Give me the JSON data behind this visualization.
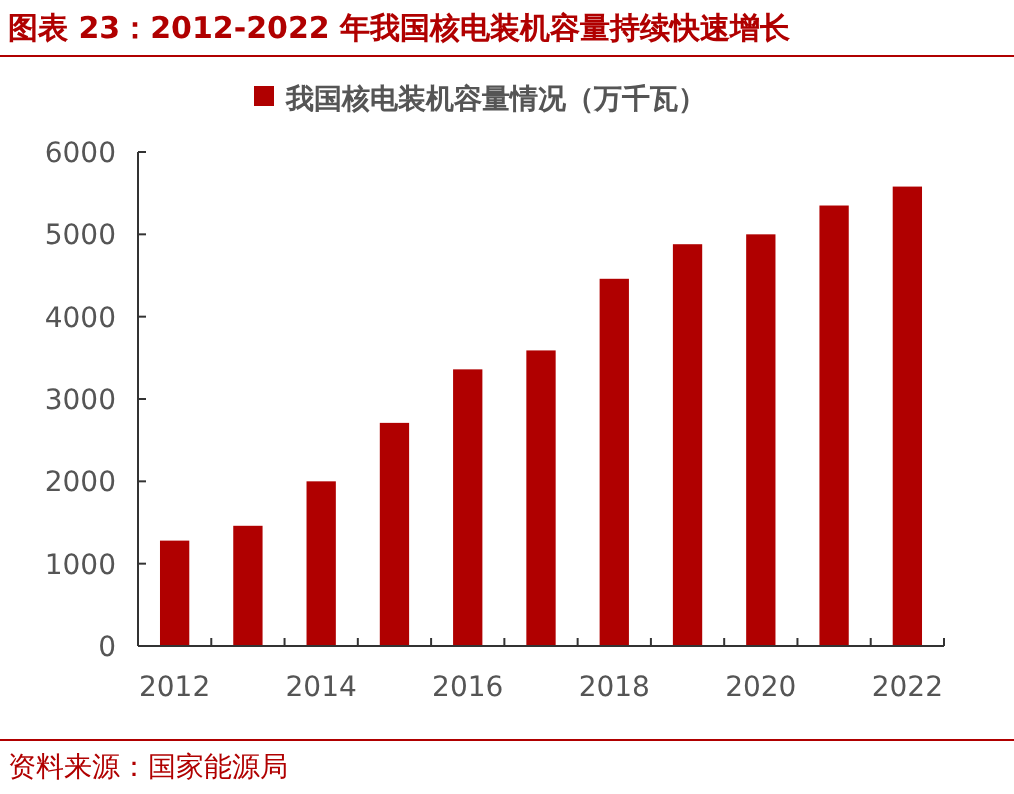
{
  "chart_data": {
    "type": "bar",
    "title": "图表 23：2012-2022 年我国核电装机容量持续快速增长",
    "categories": [
      "2012",
      null,
      "2014",
      null,
      "2016",
      null,
      "2018",
      null,
      "2020",
      null,
      "2022"
    ],
    "series": [
      {
        "name": "我国核电装机容量情况（万千瓦）",
        "color": "#b00000",
        "values": [
          1280,
          1460,
          2000,
          2710,
          3360,
          3590,
          4460,
          4880,
          5000,
          5350,
          5580
        ]
      }
    ],
    "ylim": [
      0,
      6000
    ],
    "yticks": [
      0,
      1000,
      2000,
      3000,
      4000,
      5000,
      6000
    ],
    "legend": "top",
    "annotations": [
      "资料来源：国家能源局"
    ]
  }
}
